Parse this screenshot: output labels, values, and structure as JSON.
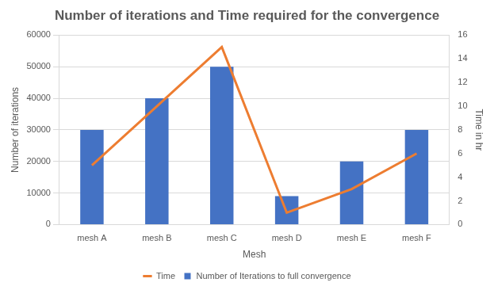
{
  "chart_data": {
    "type": "bar",
    "title": "Number of iterations and Time required for the convergence",
    "x_label": "Mesh",
    "y_label": "Number of iterations",
    "y2_label": "Time in hr",
    "categories": [
      "mesh A",
      "mesh B",
      "mesh C",
      "mesh D",
      "mesh E",
      "mesh F"
    ],
    "series": [
      {
        "name": "Number of Iterations to full convergence",
        "type": "bar",
        "color": "#4472c4",
        "values": [
          30000,
          40000,
          50000,
          9000,
          20000,
          30000
        ]
      },
      {
        "name": "Time",
        "type": "line",
        "color": "#ed7d31",
        "axis": "y2",
        "marker": "none",
        "values": [
          5,
          10,
          15,
          1,
          3,
          6
        ]
      }
    ],
    "ylim": [
      0,
      60000
    ],
    "yticks": [
      0,
      10000,
      20000,
      30000,
      40000,
      50000,
      60000
    ],
    "y2lim": [
      0,
      16
    ],
    "y2ticks": [
      0,
      2,
      4,
      6,
      8,
      10,
      12,
      14,
      16
    ],
    "grid": true,
    "legend": "bottom"
  }
}
